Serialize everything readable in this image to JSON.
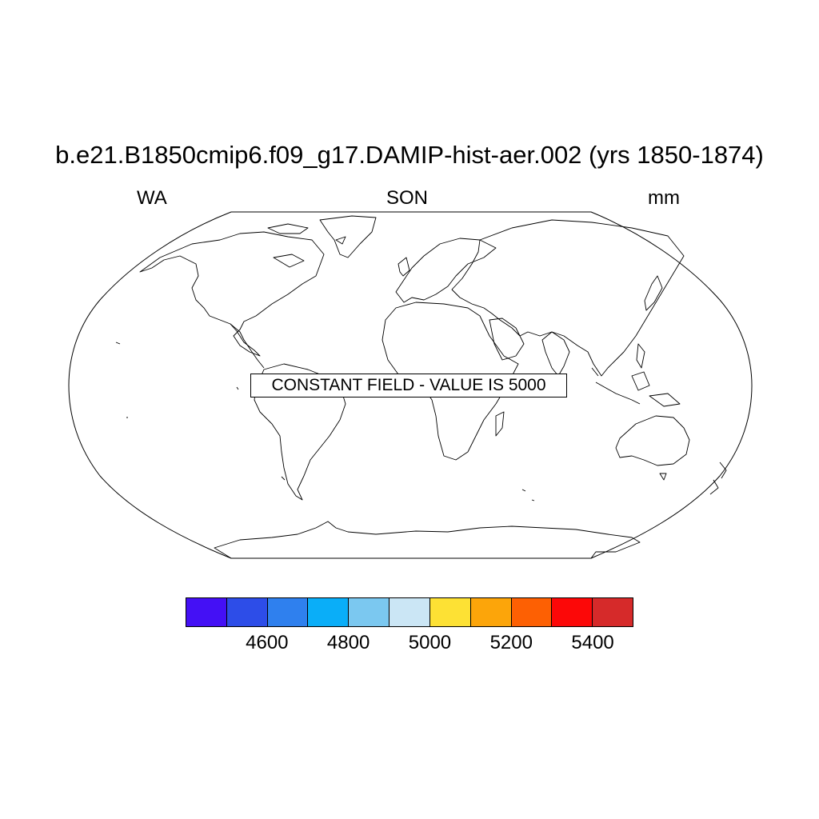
{
  "title": "b.e21.B1850cmip6.f09_g17.DAMIP-hist-aer.002 (yrs 1850-1874)",
  "subtitle_left": "WA",
  "subtitle_center": "SON",
  "subtitle_right": "mm",
  "map": {
    "projection": "robinson",
    "coastlines": true,
    "notice": "CONSTANT FIELD - VALUE IS 5000"
  },
  "colorbar": {
    "colors": [
      "#4410f5",
      "#2d4de8",
      "#2f80ee",
      "#0aaef8",
      "#7bc8f0",
      "#cbe6f5",
      "#fde134",
      "#fca50a",
      "#fd6003",
      "#fc0808",
      "#d62a2a"
    ],
    "tick_labels": [
      "4600",
      "4800",
      "5000",
      "5200",
      "5400"
    ]
  }
}
